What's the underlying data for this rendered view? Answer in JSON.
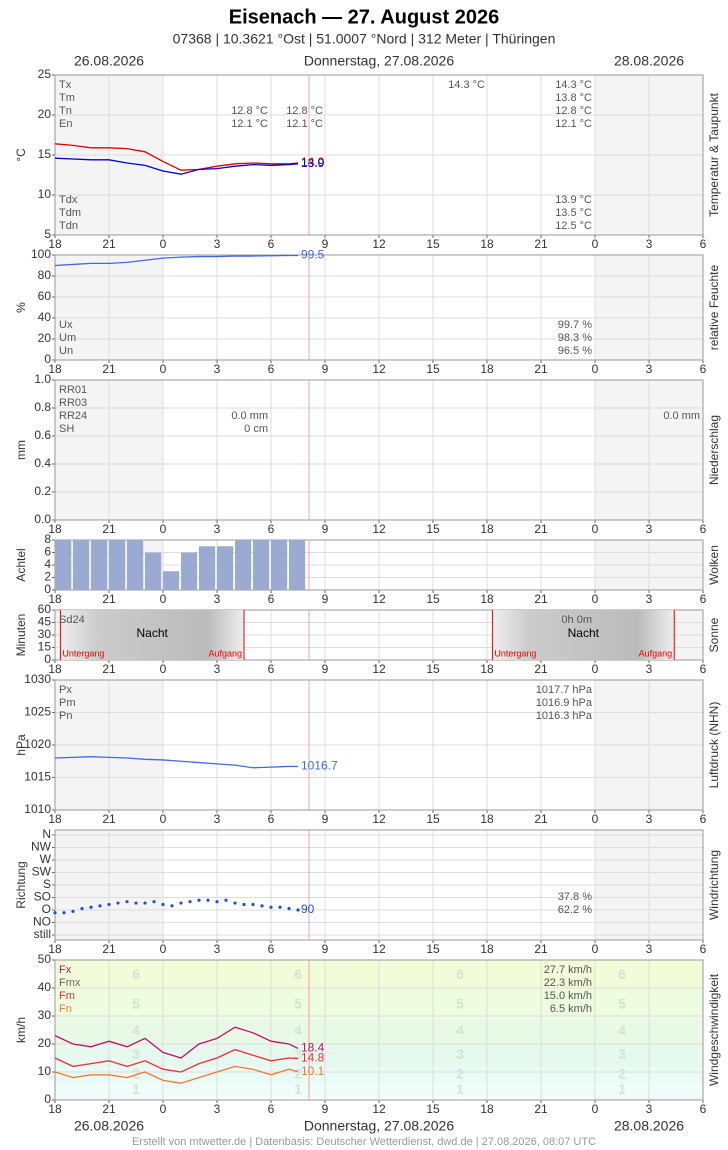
{
  "header": {
    "title": "Eisenach  —  27. August 2026",
    "subtitle": "07368  |  10.3621 °Ost  |  51.0007 °Nord  |  312 Meter  |  Thüringen",
    "date_left": "26.08.2026",
    "date_center": "Donnerstag, 27.08.2026",
    "date_right": "28.08.2026"
  },
  "footer": "Erstellt von mtwetter.de | Datenbasis: Deutscher Wetterdienst, dwd.de | 27.08.2026, 08:07 UTC",
  "xaxis": {
    "xlim": [
      0,
      36
    ],
    "xticks": [
      {
        "value": 0,
        "label": "18"
      },
      {
        "value": 3,
        "label": "21"
      },
      {
        "value": 6,
        "label": "0"
      },
      {
        "value": 9,
        "label": "3"
      },
      {
        "value": 12,
        "label": "6"
      },
      {
        "value": 15,
        "label": "9"
      },
      {
        "value": 18,
        "label": "12"
      },
      {
        "value": 21,
        "label": "15"
      },
      {
        "value": 24,
        "label": "18"
      },
      {
        "value": 27,
        "label": "21"
      },
      {
        "value": 30,
        "label": "0"
      },
      {
        "value": 33,
        "label": "3"
      },
      {
        "value": 36,
        "label": "6"
      }
    ]
  },
  "chart_data": [
    {
      "type": "line",
      "ylabel": "°C",
      "side_label": "Temperatur & Taupunkt",
      "ylim": [
        5,
        25
      ],
      "yticks": [
        5,
        10,
        15,
        20,
        25
      ],
      "grid": true,
      "x": [
        0,
        1,
        2,
        3,
        4,
        5,
        6,
        7,
        8,
        9,
        10,
        11,
        12,
        13,
        13.5
      ],
      "series": [
        {
          "name": "Temperatur",
          "color": "#e00000",
          "values": [
            16.4,
            16.2,
            15.9,
            15.9,
            15.8,
            15.4,
            14.2,
            13.1,
            13.2,
            13.6,
            13.9,
            14.0,
            13.9,
            13.9,
            14.0
          ],
          "end_label": "14.0"
        },
        {
          "name": "Taupunkt",
          "color": "#0000d0",
          "values": [
            14.6,
            14.5,
            14.4,
            14.4,
            14.0,
            13.7,
            13.0,
            12.6,
            13.2,
            13.3,
            13.6,
            13.8,
            13.7,
            13.8,
            13.9
          ],
          "end_label": "13.9"
        }
      ],
      "stat_groups": [
        [
          "Tx",
          "Tm",
          "Tn",
          "En"
        ],
        [
          "12.8 °C",
          "12.1 °C"
        ],
        [
          "12.8 °C",
          "12.1 °C"
        ],
        [
          "14.3 °C"
        ],
        [
          "14.3 °C",
          "13.8 °C",
          "12.8 °C",
          "12.1 °C"
        ],
        [
          "Tdx",
          "Tdm",
          "Tdn"
        ],
        [
          "13.9 °C",
          "13.5 °C",
          "12.5 °C"
        ]
      ]
    },
    {
      "type": "line",
      "ylabel": "%",
      "side_label": "relative Feuchte",
      "ylim": [
        0,
        100
      ],
      "yticks": [
        0,
        20,
        40,
        60,
        80,
        100
      ],
      "grid": true,
      "x": [
        0,
        1,
        2,
        3,
        4,
        5,
        6,
        7,
        8,
        9,
        10,
        11,
        12,
        13,
        13.5
      ],
      "series": [
        {
          "name": "Feuchte",
          "color": "#4169e1",
          "values": [
            90,
            91,
            92,
            92,
            93,
            95,
            97,
            98,
            98.5,
            98.5,
            99,
            99,
            99.3,
            99.5,
            99.5
          ],
          "end_label": "99.5"
        }
      ],
      "stat_groups": [
        [
          "Ux",
          "Um",
          "Un"
        ],
        [
          "99.7 %",
          "98.3 %",
          "96.5 %"
        ]
      ]
    },
    {
      "type": "bar",
      "ylabel": "mm",
      "side_label": "Niederschlag",
      "ylim": [
        0,
        1
      ],
      "yticks": [
        {
          "value": 0,
          "label": "0.0"
        },
        0.2,
        0.4,
        0.6,
        0.8,
        {
          "value": 1,
          "label": "1.0"
        }
      ],
      "grid": true,
      "stat_groups": [
        [
          "RR01",
          "RR03",
          "RR24",
          "SH"
        ],
        [
          "0.0 mm",
          "0 cm"
        ],
        [
          "0.0 mm"
        ]
      ]
    },
    {
      "type": "bar",
      "ylabel": "Achtel",
      "side_label": "Wolken",
      "ylim": [
        0,
        8
      ],
      "yticks": [
        0,
        2,
        4,
        6,
        8
      ],
      "grid": true,
      "color": "#9aaad0",
      "x": [
        0,
        1,
        2,
        3,
        4,
        5,
        6,
        7,
        8,
        9,
        10,
        11,
        12,
        13
      ],
      "values": [
        8,
        8,
        8,
        8,
        8,
        6,
        3,
        6,
        7,
        7,
        8,
        8,
        8,
        8
      ]
    },
    {
      "type": "bar",
      "ylabel": "Minuten",
      "side_label": "Sonne",
      "ylim": [
        0,
        60
      ],
      "yticks": [
        0,
        15,
        30,
        45,
        60
      ],
      "grid": true,
      "annotations": [
        "Nacht",
        "Untergang",
        "Aufgang"
      ],
      "stat_groups": [
        [
          "Sd24"
        ],
        [
          "0h 0m"
        ]
      ]
    },
    {
      "type": "line",
      "ylabel": "hPa",
      "side_label": "Luftdruck (NHN)",
      "ylim": [
        1010,
        1030
      ],
      "yticks": [
        1010,
        1015,
        1020,
        1025,
        1030
      ],
      "grid": true,
      "x": [
        0,
        1,
        2,
        3,
        4,
        5,
        6,
        7,
        8,
        9,
        10,
        11,
        12,
        13,
        13.5
      ],
      "series": [
        {
          "name": "Luftdruck",
          "color": "#4169e1",
          "values": [
            1018.0,
            1018.1,
            1018.2,
            1018.1,
            1018.0,
            1017.8,
            1017.7,
            1017.5,
            1017.3,
            1017.1,
            1016.9,
            1016.5,
            1016.6,
            1016.7,
            1016.7
          ],
          "end_label": "1016.7"
        }
      ],
      "stat_groups": [
        [
          "Px",
          "Pm",
          "Pn"
        ],
        [
          "1017.7 hPa",
          "1016.9 hPa",
          "1016.3 hPa"
        ]
      ]
    },
    {
      "type": "scatter",
      "ylabel": "Richtung",
      "side_label": "Windrichtung",
      "ylim": [
        -18,
        378
      ],
      "grid": true,
      "color": "#2050d0",
      "yticks": [
        {
          "value": 0,
          "label": "still"
        },
        {
          "value": 45,
          "label": "NO"
        },
        {
          "value": 90,
          "label": "O"
        },
        {
          "value": 135,
          "label": "SO"
        },
        {
          "value": 180,
          "label": "S"
        },
        {
          "value": 225,
          "label": "SW"
        },
        {
          "value": 270,
          "label": "W"
        },
        {
          "value": 315,
          "label": "NW"
        },
        {
          "value": 360,
          "label": "N"
        }
      ],
      "x": [
        0,
        0.5,
        1,
        1.5,
        2,
        2.5,
        3,
        3.5,
        4,
        4.5,
        5,
        5.5,
        6,
        6.5,
        7,
        7.5,
        8,
        8.5,
        9,
        9.5,
        10,
        10.5,
        11,
        11.5,
        12,
        12.5,
        13,
        13.5
      ],
      "values": [
        80,
        80,
        85,
        95,
        100,
        105,
        110,
        115,
        120,
        115,
        115,
        120,
        110,
        105,
        115,
        120,
        125,
        125,
        120,
        125,
        115,
        110,
        110,
        105,
        100,
        100,
        95,
        90
      ],
      "end_label": "90",
      "stat_groups": [
        [
          "37.8 %",
          "62.2 %"
        ]
      ]
    },
    {
      "type": "line",
      "ylabel": "km/h",
      "side_label": "Windgeschwindigkeit",
      "ylim": [
        0,
        50
      ],
      "yticks": [
        0,
        10,
        20,
        30,
        40,
        50
      ],
      "grid": true,
      "beaufort": {
        "levels": [
          1,
          2,
          3,
          4,
          5,
          6
        ],
        "bounds": [
          1,
          6,
          12,
          20,
          29,
          39,
          50
        ],
        "colors": [
          "#eefcfc",
          "#e8fbf4",
          "#e6f9ee",
          "#e8fae6",
          "#eefce0",
          "#f3fcd8"
        ]
      },
      "x": [
        0,
        1,
        2,
        3,
        4,
        5,
        6,
        7,
        8,
        9,
        10,
        11,
        12,
        13,
        13.5
      ],
      "series": [
        {
          "name": "Fx",
          "color": "#c0106a",
          "values": [
            23,
            20,
            19,
            21,
            19,
            22,
            17,
            15,
            20,
            22,
            26,
            24,
            21,
            20,
            18.4
          ],
          "end_label": "18.4"
        },
        {
          "name": "Fm",
          "color": "#e83040",
          "values": [
            15,
            12,
            13,
            14,
            12,
            14,
            11,
            10,
            13,
            15,
            18,
            16,
            14,
            15,
            14.8
          ],
          "end_label": "14.8"
        },
        {
          "name": "Fn",
          "color": "#f07838",
          "values": [
            10,
            8,
            9,
            9,
            8,
            10,
            7,
            6,
            8,
            10,
            12,
            11,
            9,
            11,
            10.1
          ],
          "end_label": "10.1"
        }
      ],
      "stat_groups": [
        [
          "Fx",
          "Fmx",
          "Fm",
          "Fn"
        ],
        [
          "27.7 km/h",
          "22.3 km/h",
          "15.0 km/h",
          "6.5 km/h"
        ]
      ],
      "stat_colors": [
        "#c0106a",
        "#666666",
        "#e83040",
        "#f07838"
      ]
    }
  ]
}
